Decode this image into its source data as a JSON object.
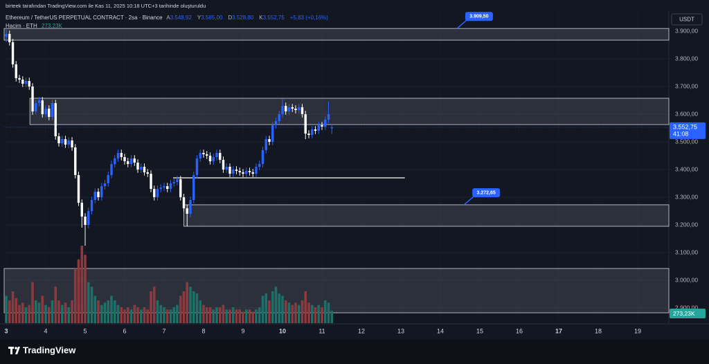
{
  "credit": "birteek tarafından TradingView.com ile Kas 11, 2025 10:18 UTC+3 tarihinde oluşturuldu",
  "brand": "TradingView",
  "chart_data": {
    "type": "candlestick",
    "title": "Ethereum / TetherUS PERPETUAL CONTRACT · 2sa · Binance",
    "ohlc_legend": [
      {
        "prefix": "A",
        "value": 3548.92,
        "label": "3.548,92"
      },
      {
        "prefix": "Y",
        "value": 3565,
        "label": "3.565,00"
      },
      {
        "prefix": "D",
        "value": 3528.8,
        "label": "3.528,80"
      },
      {
        "prefix": "K",
        "value": 3552.75,
        "label": "3.552,75"
      }
    ],
    "change_label": "+5,83 (+0,16%)",
    "currency": "USDT",
    "up_color": "#2962ff",
    "down_color": "#ffffff",
    "x": [
      3,
      3.083,
      3.167,
      3.25,
      3.333,
      3.417,
      3.5,
      3.583,
      3.667,
      3.75,
      3.833,
      3.917,
      4,
      4.083,
      4.167,
      4.25,
      4.333,
      4.417,
      4.5,
      4.583,
      4.667,
      4.75,
      4.833,
      4.917,
      5,
      5.083,
      5.167,
      5.25,
      5.333,
      5.417,
      5.5,
      5.583,
      5.667,
      5.75,
      5.833,
      5.917,
      6,
      6.083,
      6.167,
      6.25,
      6.333,
      6.417,
      6.5,
      6.583,
      6.667,
      6.75,
      6.833,
      6.917,
      7,
      7.083,
      7.167,
      7.25,
      7.333,
      7.417,
      7.5,
      7.583,
      7.667,
      7.75,
      7.833,
      7.917,
      8,
      8.083,
      8.167,
      8.25,
      8.333,
      8.417,
      8.5,
      8.583,
      8.667,
      8.75,
      8.833,
      8.917,
      9,
      9.083,
      9.167,
      9.25,
      9.333,
      9.417,
      9.5,
      9.583,
      9.667,
      9.75,
      9.833,
      9.917,
      10,
      10.083,
      10.167,
      10.25,
      10.333,
      10.417,
      10.5,
      10.583,
      10.667,
      10.75,
      10.833,
      10.917,
      11,
      11.083,
      11.167,
      11.25
    ],
    "open": [
      3880,
      3890,
      3860,
      3780,
      3730,
      3725,
      3710,
      3720,
      3700,
      3610,
      3640,
      3650,
      3600,
      3620,
      3590,
      3640,
      3520,
      3495,
      3510,
      3490,
      3505,
      3480,
      3380,
      3280,
      3230,
      3200,
      3250,
      3290,
      3320,
      3300,
      3340,
      3350,
      3380,
      3420,
      3440,
      3460,
      3445,
      3430,
      3420,
      3440,
      3425,
      3400,
      3410,
      3390,
      3385,
      3330,
      3300,
      3330,
      3335,
      3340,
      3330,
      3350,
      3355,
      3365,
      3300,
      3260,
      3240,
      3290,
      3380,
      3440,
      3460,
      3455,
      3450,
      3430,
      3445,
      3460,
      3435,
      3400,
      3410,
      3385,
      3400,
      3395,
      3390,
      3385,
      3395,
      3390,
      3385,
      3410,
      3420,
      3470,
      3510,
      3500,
      3560,
      3575,
      3600,
      3630,
      3610,
      3625,
      3620,
      3615,
      3625,
      3600,
      3530,
      3525,
      3545,
      3540,
      3560,
      3555,
      3580,
      3548.92
    ],
    "high": [
      3905,
      3902,
      3872,
      3792,
      3742,
      3737,
      3732,
      3732,
      3712,
      3652,
      3662,
      3662,
      3632,
      3632,
      3652,
      3652,
      3532,
      3522,
      3522,
      3517,
      3517,
      3492,
      3392,
      3292,
      3242,
      3262,
      3302,
      3332,
      3332,
      3352,
      3362,
      3392,
      3432,
      3452,
      3472,
      3472,
      3457,
      3442,
      3452,
      3452,
      3437,
      3422,
      3422,
      3402,
      3397,
      3342,
      3342,
      3347,
      3352,
      3352,
      3362,
      3367,
      3377,
      3377,
      3312,
      3272,
      3302,
      3392,
      3452,
      3472,
      3472,
      3467,
      3462,
      3457,
      3472,
      3472,
      3447,
      3422,
      3422,
      3412,
      3412,
      3407,
      3402,
      3407,
      3407,
      3402,
      3422,
      3432,
      3482,
      3522,
      3522,
      3572,
      3587,
      3612,
      3655,
      3642,
      3637,
      3637,
      3632,
      3637,
      3637,
      3612,
      3542,
      3557,
      3557,
      3572,
      3572,
      3592,
      3645,
      3565
    ],
    "low": [
      3860,
      3848,
      3768,
      3718,
      3713,
      3698,
      3698,
      3688,
      3598,
      3598,
      3628,
      3588,
      3588,
      3578,
      3578,
      3508,
      3483,
      3483,
      3478,
      3478,
      3468,
      3368,
      3268,
      3190,
      3125,
      3188,
      3238,
      3278,
      3288,
      3288,
      3328,
      3338,
      3368,
      3408,
      3428,
      3433,
      3418,
      3408,
      3408,
      3413,
      3388,
      3388,
      3378,
      3373,
      3318,
      3288,
      3288,
      3318,
      3323,
      3318,
      3318,
      3338,
      3343,
      3288,
      3248,
      3195,
      3228,
      3278,
      3368,
      3428,
      3443,
      3438,
      3418,
      3418,
      3433,
      3423,
      3388,
      3388,
      3373,
      3373,
      3383,
      3378,
      3373,
      3373,
      3378,
      3373,
      3373,
      3398,
      3408,
      3458,
      3488,
      3488,
      3548,
      3563,
      3588,
      3598,
      3598,
      3608,
      3603,
      3603,
      3588,
      3510,
      3513,
      3513,
      3528,
      3528,
      3543,
      3543,
      3568,
      3528.8
    ],
    "close": [
      3890,
      3860,
      3780,
      3730,
      3725,
      3710,
      3720,
      3700,
      3610,
      3640,
      3650,
      3600,
      3620,
      3590,
      3640,
      3520,
      3495,
      3510,
      3490,
      3505,
      3480,
      3380,
      3280,
      3230,
      3200,
      3250,
      3290,
      3320,
      3300,
      3340,
      3350,
      3380,
      3420,
      3440,
      3460,
      3445,
      3430,
      3420,
      3440,
      3425,
      3400,
      3410,
      3390,
      3385,
      3330,
      3300,
      3330,
      3335,
      3340,
      3330,
      3350,
      3355,
      3365,
      3300,
      3260,
      3240,
      3290,
      3380,
      3440,
      3460,
      3455,
      3450,
      3430,
      3445,
      3460,
      3435,
      3400,
      3410,
      3385,
      3400,
      3395,
      3390,
      3385,
      3395,
      3390,
      3385,
      3410,
      3420,
      3470,
      3510,
      3500,
      3560,
      3575,
      3600,
      3630,
      3610,
      3625,
      3620,
      3615,
      3625,
      3600,
      3530,
      3525,
      3545,
      3540,
      3560,
      3555,
      3580,
      3600,
      3552.75
    ],
    "volume": {
      "name": "Hacim · ETH",
      "up_color": "#1f6f69",
      "down_color": "#8c3a3d",
      "last_label": "273,23K",
      "values": [
        600,
        500,
        700,
        550,
        400,
        450,
        350,
        400,
        900,
        500,
        450,
        600,
        400,
        350,
        500,
        800,
        500,
        400,
        450,
        350,
        500,
        1200,
        1400,
        1700,
        1500,
        900,
        800,
        600,
        500,
        400,
        450,
        500,
        600,
        500,
        400,
        350,
        300,
        350,
        300,
        400,
        350,
        300,
        350,
        300,
        700,
        800,
        500,
        400,
        350,
        300,
        300,
        350,
        400,
        600,
        700,
        900,
        800,
        700,
        650,
        500,
        400,
        350,
        350,
        300,
        350,
        350,
        400,
        300,
        300,
        350,
        300,
        300,
        250,
        300,
        300,
        250,
        300,
        350,
        600,
        650,
        500,
        700,
        800,
        650,
        600,
        500,
        450,
        400,
        450,
        400,
        500,
        700,
        450,
        400,
        350,
        400,
        350,
        500,
        450,
        273.23
      ]
    },
    "last_price": {
      "value": 3552.75,
      "label": "3.552,75",
      "countdown": "41:08"
    },
    "zones": [
      {
        "top": 3909.5,
        "bottom": 3867.5,
        "start": 2.947
      },
      {
        "top": 3657.5,
        "bottom": 3562.5,
        "start": 3.6
      },
      {
        "top": 3272.65,
        "bottom": 3195,
        "start": 7.5
      },
      {
        "top": 3042.5,
        "bottom": 2882.5,
        "start": 2.947
      }
    ],
    "level_line": {
      "value": 3370,
      "start": 7.23,
      "end": 13.1
    },
    "callouts": [
      {
        "value": 3909.5,
        "label": "3.909,50",
        "x": 14.42
      },
      {
        "value": 3272.65,
        "label": "3.272,65",
        "x": 14.6
      }
    ],
    "xlim": [
      2.947,
      19.79
    ],
    "xticks": [
      3,
      4,
      5,
      6,
      7,
      8,
      9,
      10,
      11,
      12,
      13,
      14,
      15,
      16,
      17,
      18,
      19
    ],
    "ylim": [
      2845,
      3975
    ],
    "yticks": [
      {
        "value": 2900,
        "label": "2.900,00"
      },
      {
        "value": 3000,
        "label": "3.000,00"
      },
      {
        "value": 3100,
        "label": "3.100,00"
      },
      {
        "value": 3200,
        "label": "3.200,00"
      },
      {
        "value": 3300,
        "label": "3.300,00"
      },
      {
        "value": 3400,
        "label": "3.400,00"
      },
      {
        "value": 3500,
        "label": "3.500,00"
      },
      {
        "value": 3600,
        "label": "3.600,00"
      },
      {
        "value": 3700,
        "label": "3.700,00"
      },
      {
        "value": 3800,
        "label": "3.800,00"
      },
      {
        "value": 3900,
        "label": "3.900,00"
      }
    ]
  }
}
